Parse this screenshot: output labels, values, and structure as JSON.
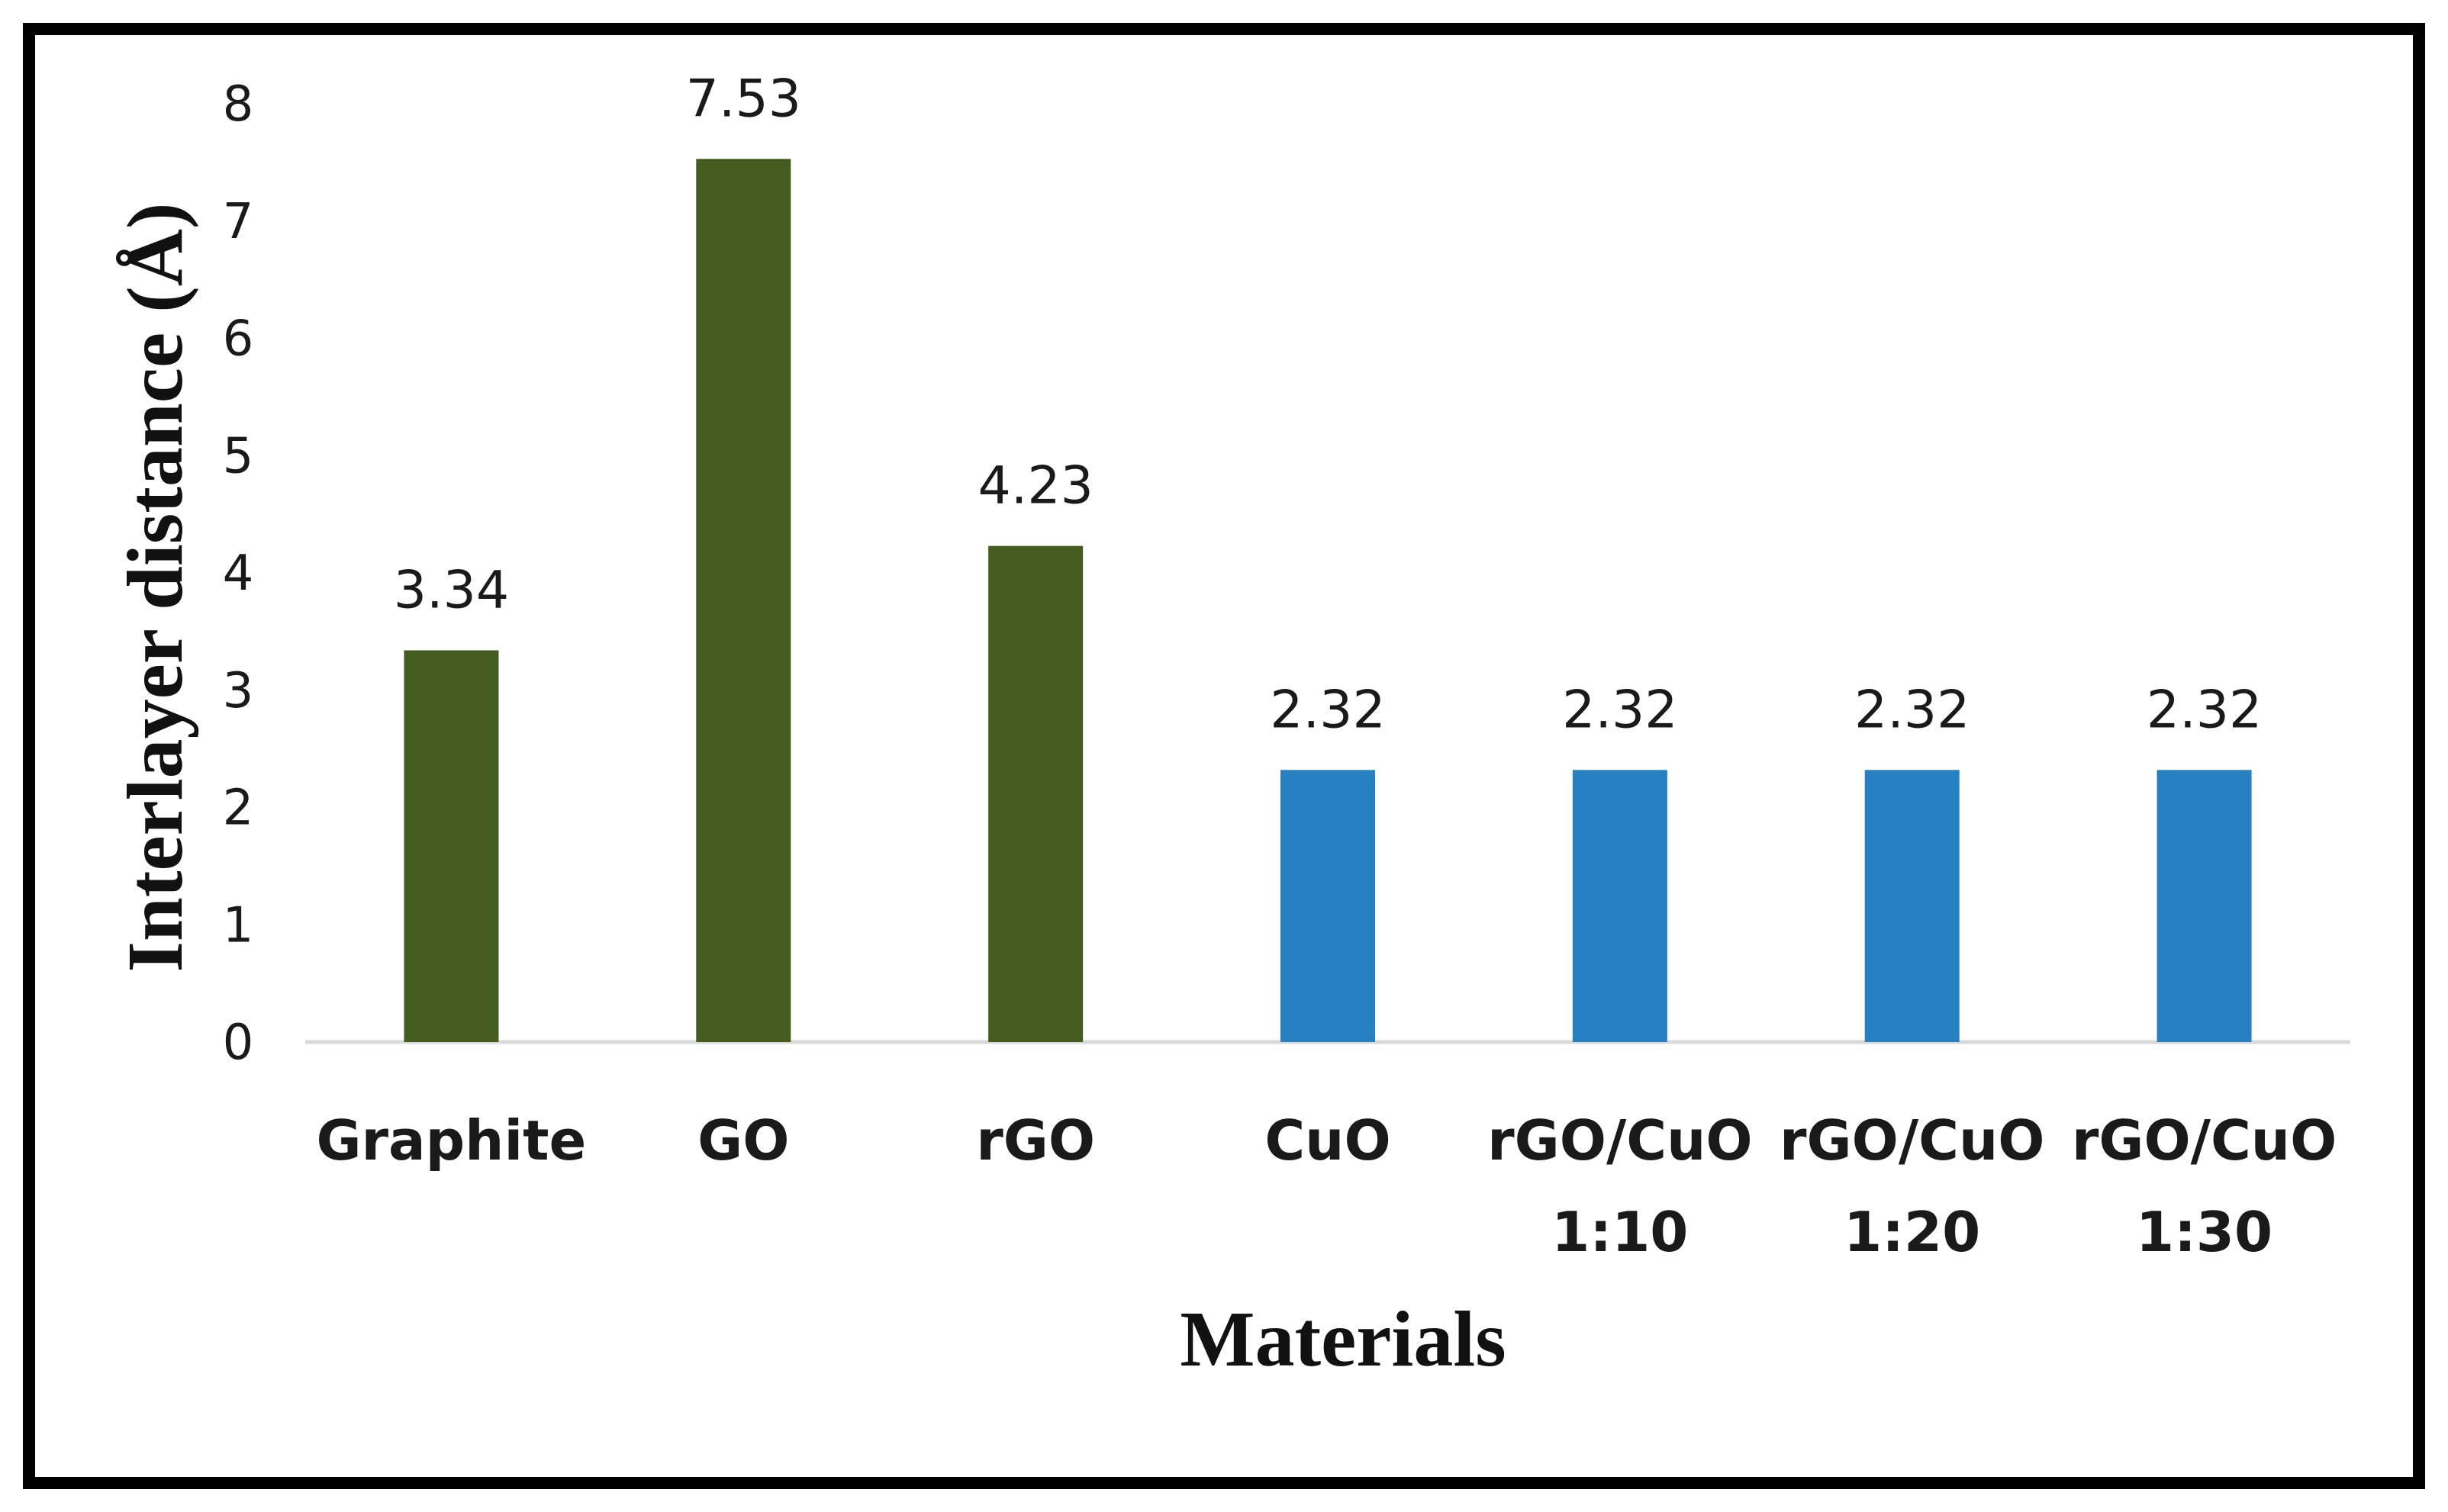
{
  "chart_data": {
    "type": "bar",
    "title": "",
    "xlabel": "Materials",
    "ylabel": "Interlayer distance (Å)",
    "ylim": [
      0,
      8
    ],
    "yticks": [
      "0",
      "1",
      "2",
      "3",
      "4",
      "5",
      "6",
      "7",
      "8"
    ],
    "grid": false,
    "legend": "none",
    "categories": [
      [
        "Graphite"
      ],
      [
        "GO"
      ],
      [
        "rGO"
      ],
      [
        "CuO"
      ],
      [
        "rGO/CuO",
        "1:10"
      ],
      [
        "rGO/CuO",
        "1:20"
      ],
      [
        "rGO/CuO",
        "1:30"
      ]
    ],
    "values": [
      3.34,
      7.53,
      4.23,
      2.32,
      2.32,
      2.32,
      2.32
    ],
    "data_labels": [
      "3.34",
      "7.53",
      "4.23",
      "2.32",
      "2.32",
      "2.32",
      "2.32"
    ],
    "bar_colors": [
      "#445c1f",
      "#445c1f",
      "#445c1f",
      "#2680c2",
      "#2680c2",
      "#2680c2",
      "#2680c2"
    ],
    "axis_color": "#d9d9d9"
  }
}
